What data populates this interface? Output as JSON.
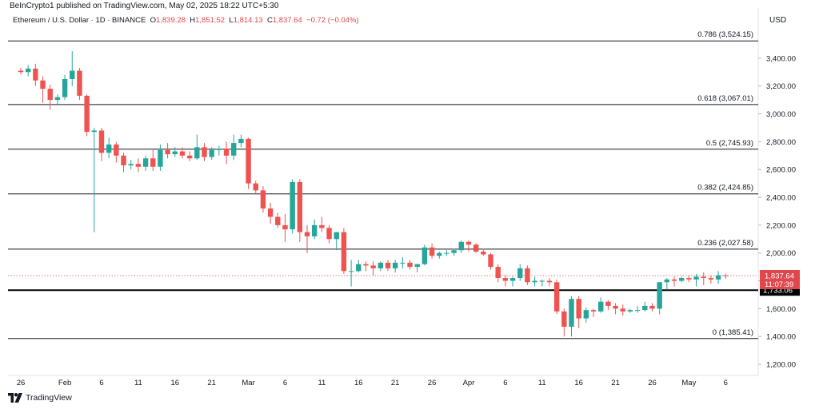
{
  "header": {
    "publisher": "BeInCrypto1 published on TradingView.com, May 02, 2025 18:22 UTC+5:30",
    "symbol": "Ethereum / U.S. Dollar · 1D · BINANCE",
    "o_label": "O",
    "o_value": "1,839.28",
    "h_label": "H",
    "h_value": "1,851.52",
    "l_label": "L",
    "l_value": "1,814.13",
    "c_label": "C",
    "c_value": "1,837.64",
    "change": "−0.72 (−0.04%)"
  },
  "currency": "USD",
  "brand": {
    "text": "TradingView",
    "icon": "tradingview-logo-icon"
  },
  "colors": {
    "up": "#26a69a",
    "down": "#ef5350",
    "price_line": "#e0474c",
    "level_line": "#131722"
  },
  "chart_data": {
    "type": "candlestick",
    "title": "Ethereum / U.S. Dollar · 1D · BINANCE",
    "ylim": [
      1120,
      3600
    ],
    "y_ticks": [
      "3,400.00",
      "3,200.00",
      "3,000.00",
      "2,800.00",
      "2,600.00",
      "2,400.00",
      "2,200.00",
      "2,000.00",
      "1,800.00",
      "1,600.00",
      "1,400.00",
      "1,200.00"
    ],
    "y_tick_values": [
      3400,
      3200,
      3000,
      2800,
      2600,
      2400,
      2200,
      2000,
      1800,
      1600,
      1400,
      1200
    ],
    "x_tick_labels": [
      "26",
      "Feb",
      "6",
      "11",
      "16",
      "21",
      "Mar",
      "6",
      "11",
      "16",
      "21",
      "26",
      "Apr",
      "6",
      "11",
      "16",
      "21",
      "26",
      "May",
      "6"
    ],
    "x_tick_indices": [
      0,
      6,
      11,
      16,
      21,
      26,
      31,
      36,
      41,
      46,
      51,
      56,
      61,
      66,
      71,
      76,
      81,
      86,
      91,
      96
    ],
    "fib_levels": [
      {
        "label": "0.786 (3,524.15)",
        "value": 3524.15
      },
      {
        "label": "0.618 (3,067.01)",
        "value": 3067.01
      },
      {
        "label": "0.5 (2,745.93)",
        "value": 2745.93
      },
      {
        "label": "0.382 (2,424.85)",
        "value": 2424.85
      },
      {
        "label": "0.236 (2,027.58)",
        "value": 2027.58
      },
      {
        "label": "0 (1,385.41)",
        "value": 1385.41
      }
    ],
    "support_level": {
      "value": 1733.06,
      "label": "1,733.06"
    },
    "current_price": {
      "value": 1837.64,
      "label": "1,837.64",
      "countdown": "11:07:39"
    },
    "candles": [
      [
        3310,
        3330,
        3285,
        3300
      ],
      [
        3300,
        3350,
        3270,
        3325
      ],
      [
        3325,
        3360,
        3200,
        3240
      ],
      [
        3240,
        3270,
        3080,
        3180
      ],
      [
        3180,
        3210,
        3030,
        3100
      ],
      [
        3100,
        3140,
        3060,
        3120
      ],
      [
        3120,
        3280,
        3100,
        3250
      ],
      [
        3250,
        3450,
        3200,
        3310
      ],
      [
        3310,
        3330,
        3100,
        3130
      ],
      [
        3130,
        3140,
        2840,
        2870
      ],
      [
        2870,
        2900,
        2150,
        2880
      ],
      [
        2880,
        2900,
        2660,
        2720
      ],
      [
        2720,
        2830,
        2680,
        2780
      ],
      [
        2780,
        2800,
        2650,
        2700
      ],
      [
        2700,
        2720,
        2580,
        2630
      ],
      [
        2630,
        2670,
        2600,
        2640
      ],
      [
        2640,
        2680,
        2580,
        2620
      ],
      [
        2620,
        2700,
        2590,
        2680
      ],
      [
        2680,
        2740,
        2590,
        2620
      ],
      [
        2620,
        2780,
        2590,
        2740
      ],
      [
        2740,
        2790,
        2680,
        2710
      ],
      [
        2710,
        2760,
        2690,
        2730
      ],
      [
        2730,
        2760,
        2680,
        2700
      ],
      [
        2700,
        2730,
        2660,
        2680
      ],
      [
        2680,
        2850,
        2670,
        2760
      ],
      [
        2760,
        2790,
        2660,
        2690
      ],
      [
        2690,
        2760,
        2670,
        2740
      ],
      [
        2740,
        2770,
        2700,
        2750
      ],
      [
        2750,
        2800,
        2640,
        2700
      ],
      [
        2700,
        2850,
        2670,
        2790
      ],
      [
        2790,
        2850,
        2760,
        2820
      ],
      [
        2820,
        2830,
        2460,
        2500
      ],
      [
        2500,
        2520,
        2420,
        2450
      ],
      [
        2450,
        2480,
        2290,
        2320
      ],
      [
        2320,
        2360,
        2210,
        2260
      ],
      [
        2260,
        2290,
        2180,
        2200
      ],
      [
        2200,
        2280,
        2080,
        2170
      ],
      [
        2170,
        2530,
        2140,
        2510
      ],
      [
        2510,
        2530,
        2080,
        2150
      ],
      [
        2150,
        2200,
        2000,
        2120
      ],
      [
        2120,
        2240,
        2100,
        2200
      ],
      [
        2200,
        2260,
        2150,
        2180
      ],
      [
        2180,
        2200,
        2070,
        2100
      ],
      [
        2100,
        2150,
        2020,
        2150
      ],
      [
        2150,
        2180,
        1850,
        1870
      ],
      [
        1870,
        1950,
        1760,
        1870
      ],
      [
        1870,
        1950,
        1860,
        1920
      ],
      [
        1920,
        1940,
        1870,
        1910
      ],
      [
        1910,
        1940,
        1840,
        1890
      ],
      [
        1890,
        1940,
        1870,
        1930
      ],
      [
        1930,
        1950,
        1870,
        1890
      ],
      [
        1890,
        1950,
        1860,
        1930
      ],
      [
        1930,
        1970,
        1890,
        1930
      ],
      [
        1930,
        1950,
        1880,
        1900
      ],
      [
        1900,
        1920,
        1860,
        1920
      ],
      [
        1920,
        2060,
        1910,
        2040
      ],
      [
        2040,
        2070,
        1960,
        1980
      ],
      [
        1980,
        2010,
        1960,
        2000
      ],
      [
        2000,
        2020,
        1980,
        2000
      ],
      [
        2000,
        2030,
        1980,
        2020
      ],
      [
        2020,
        2090,
        2000,
        2080
      ],
      [
        2080,
        2090,
        2010,
        2060
      ],
      [
        2060,
        2070,
        2000,
        2010
      ],
      [
        2010,
        2030,
        1980,
        1990
      ],
      [
        1990,
        2000,
        1880,
        1900
      ],
      [
        1900,
        1920,
        1790,
        1820
      ],
      [
        1820,
        1840,
        1760,
        1800
      ],
      [
        1800,
        1830,
        1760,
        1820
      ],
      [
        1820,
        1920,
        1800,
        1890
      ],
      [
        1890,
        1910,
        1770,
        1790
      ],
      [
        1790,
        1830,
        1760,
        1800
      ],
      [
        1800,
        1810,
        1760,
        1800
      ],
      [
        1800,
        1820,
        1760,
        1790
      ],
      [
        1790,
        1810,
        1560,
        1580
      ],
      [
        1580,
        1600,
        1400,
        1470
      ],
      [
        1470,
        1690,
        1400,
        1670
      ],
      [
        1670,
        1690,
        1460,
        1530
      ],
      [
        1530,
        1610,
        1500,
        1590
      ],
      [
        1590,
        1600,
        1540,
        1580
      ],
      [
        1580,
        1680,
        1570,
        1650
      ],
      [
        1650,
        1660,
        1590,
        1620
      ],
      [
        1620,
        1640,
        1560,
        1600
      ],
      [
        1600,
        1630,
        1550,
        1580
      ],
      [
        1580,
        1600,
        1570,
        1590
      ],
      [
        1590,
        1620,
        1570,
        1590
      ],
      [
        1590,
        1650,
        1580,
        1620
      ],
      [
        1620,
        1640,
        1580,
        1600
      ],
      [
        1600,
        1790,
        1560,
        1790
      ],
      [
        1790,
        1820,
        1740,
        1810
      ],
      [
        1810,
        1830,
        1760,
        1800
      ],
      [
        1800,
        1830,
        1790,
        1820
      ],
      [
        1820,
        1840,
        1790,
        1810
      ],
      [
        1810,
        1850,
        1760,
        1830
      ],
      [
        1830,
        1860,
        1770,
        1820
      ],
      [
        1820,
        1840,
        1780,
        1810
      ],
      [
        1810,
        1870,
        1780,
        1840
      ],
      [
        1839.28,
        1851.52,
        1814.13,
        1837.64
      ]
    ]
  }
}
